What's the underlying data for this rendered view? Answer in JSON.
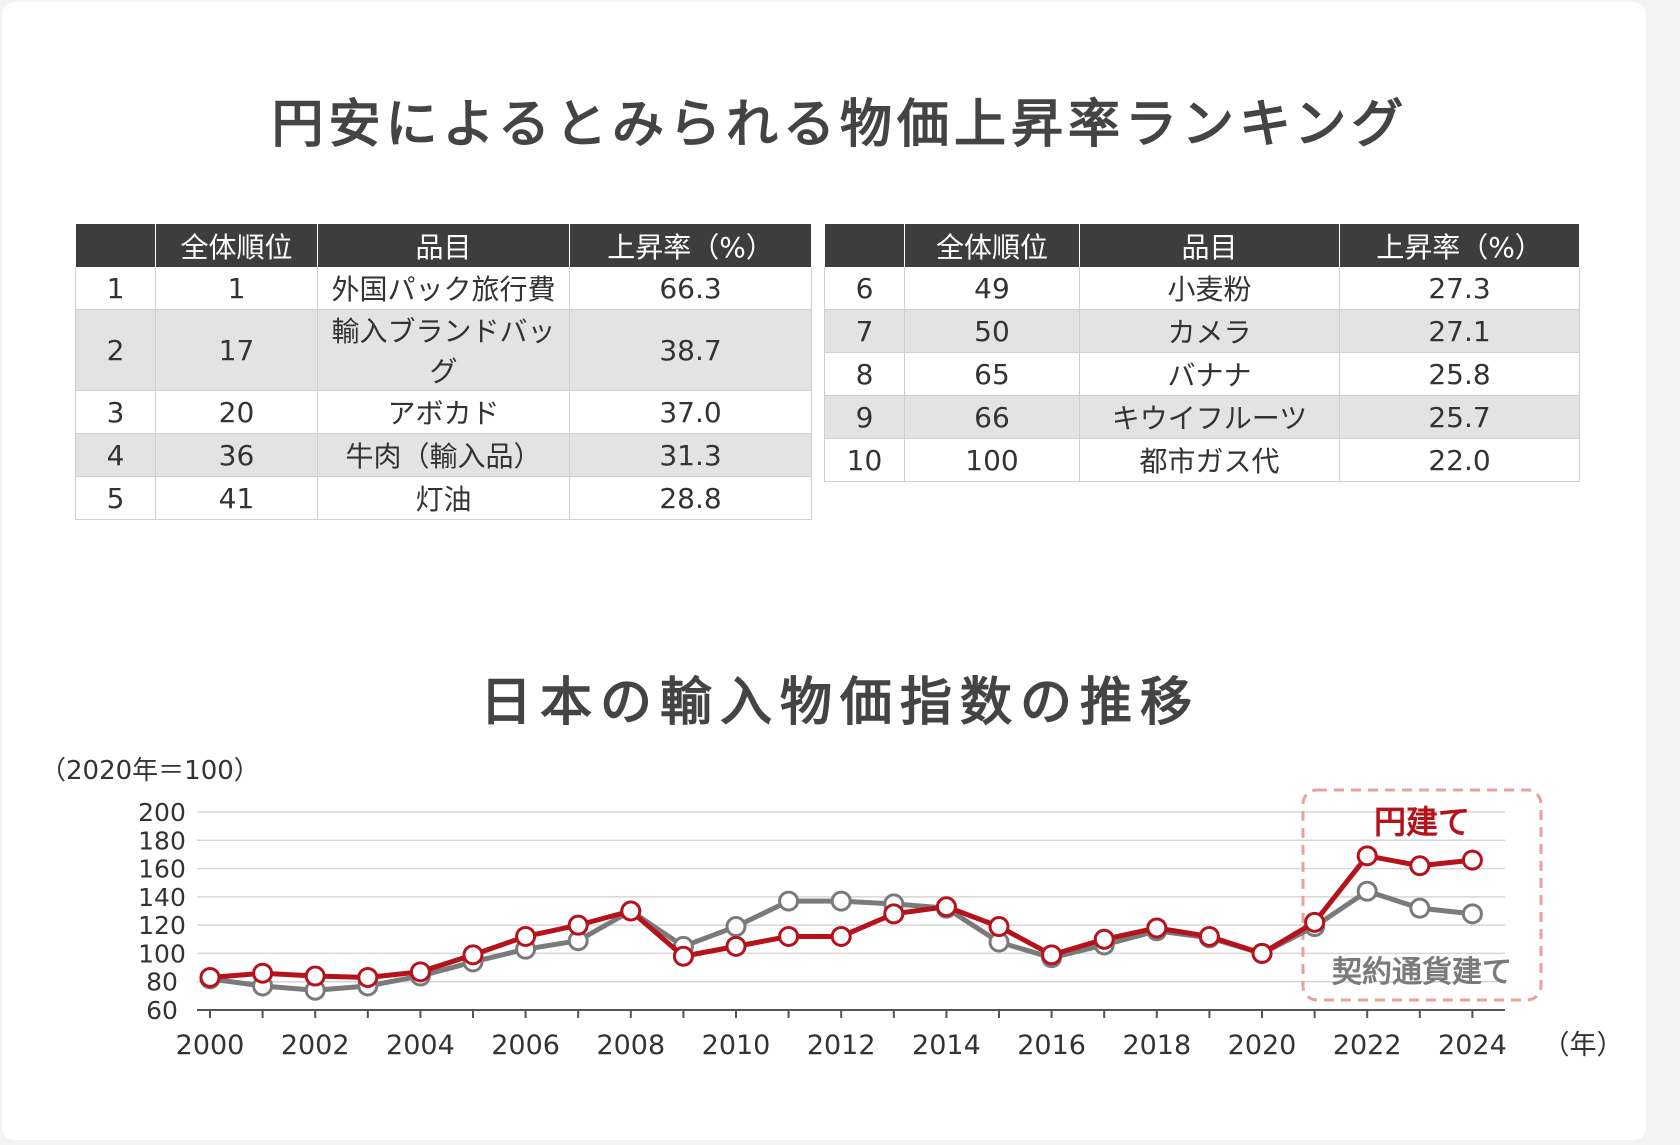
{
  "title1": "円安によるとみられる物価上昇率ランキング",
  "title2": "日本の輸入物価指数の推移",
  "table": {
    "headers": [
      "",
      "全体順位",
      "品目",
      "上昇率（%）"
    ],
    "left": [
      [
        "1",
        "1",
        "外国パック旅行費",
        "66.3"
      ],
      [
        "2",
        "17",
        "輸入ブランドバッグ",
        "38.7"
      ],
      [
        "3",
        "20",
        "アボカド",
        "37.0"
      ],
      [
        "4",
        "36",
        "牛肉（輸入品）",
        "31.3"
      ],
      [
        "5",
        "41",
        "灯油",
        "28.8"
      ]
    ],
    "right": [
      [
        "6",
        "49",
        "小麦粉",
        "27.3"
      ],
      [
        "7",
        "50",
        "カメラ",
        "27.1"
      ],
      [
        "8",
        "65",
        "バナナ",
        "25.8"
      ],
      [
        "9",
        "66",
        "キウイフルーツ",
        "25.7"
      ],
      [
        "10",
        "100",
        "都市ガス代",
        "22.0"
      ]
    ]
  },
  "chart_data": {
    "type": "line",
    "ylabel": "（2020年＝100）",
    "xlabel": "（年）",
    "ylim": [
      60,
      200
    ],
    "yticks": [
      60,
      80,
      100,
      120,
      140,
      160,
      180,
      200
    ],
    "xticks": [
      "2000",
      "2002",
      "2004",
      "2006",
      "2008",
      "2010",
      "2012",
      "2014",
      "2016",
      "2018",
      "2020",
      "2022",
      "2024"
    ],
    "x": [
      2000,
      2001,
      2002,
      2003,
      2004,
      2005,
      2006,
      2007,
      2008,
      2009,
      2010,
      2011,
      2012,
      2013,
      2014,
      2015,
      2016,
      2017,
      2018,
      2019,
      2020,
      2021,
      2022,
      2023,
      2024
    ],
    "series": [
      {
        "name": "契約通貨建て",
        "color": "#7a7a7a",
        "values": [
          82,
          77,
          74,
          77,
          84,
          94,
          103,
          109,
          130,
          105,
          119,
          137,
          137,
          135,
          132,
          108,
          97,
          106,
          116,
          111,
          100,
          119,
          144,
          132,
          128
        ]
      },
      {
        "name": "円建て",
        "color": "#b5121b",
        "values": [
          83,
          86,
          84,
          83,
          87,
          99,
          112,
          120,
          130,
          98,
          105,
          112,
          112,
          128,
          133,
          119,
          99,
          110,
          118,
          112,
          100,
          122,
          169,
          162,
          166
        ]
      }
    ],
    "grid": "horizontal",
    "legend": "inline labels, top-right"
  }
}
